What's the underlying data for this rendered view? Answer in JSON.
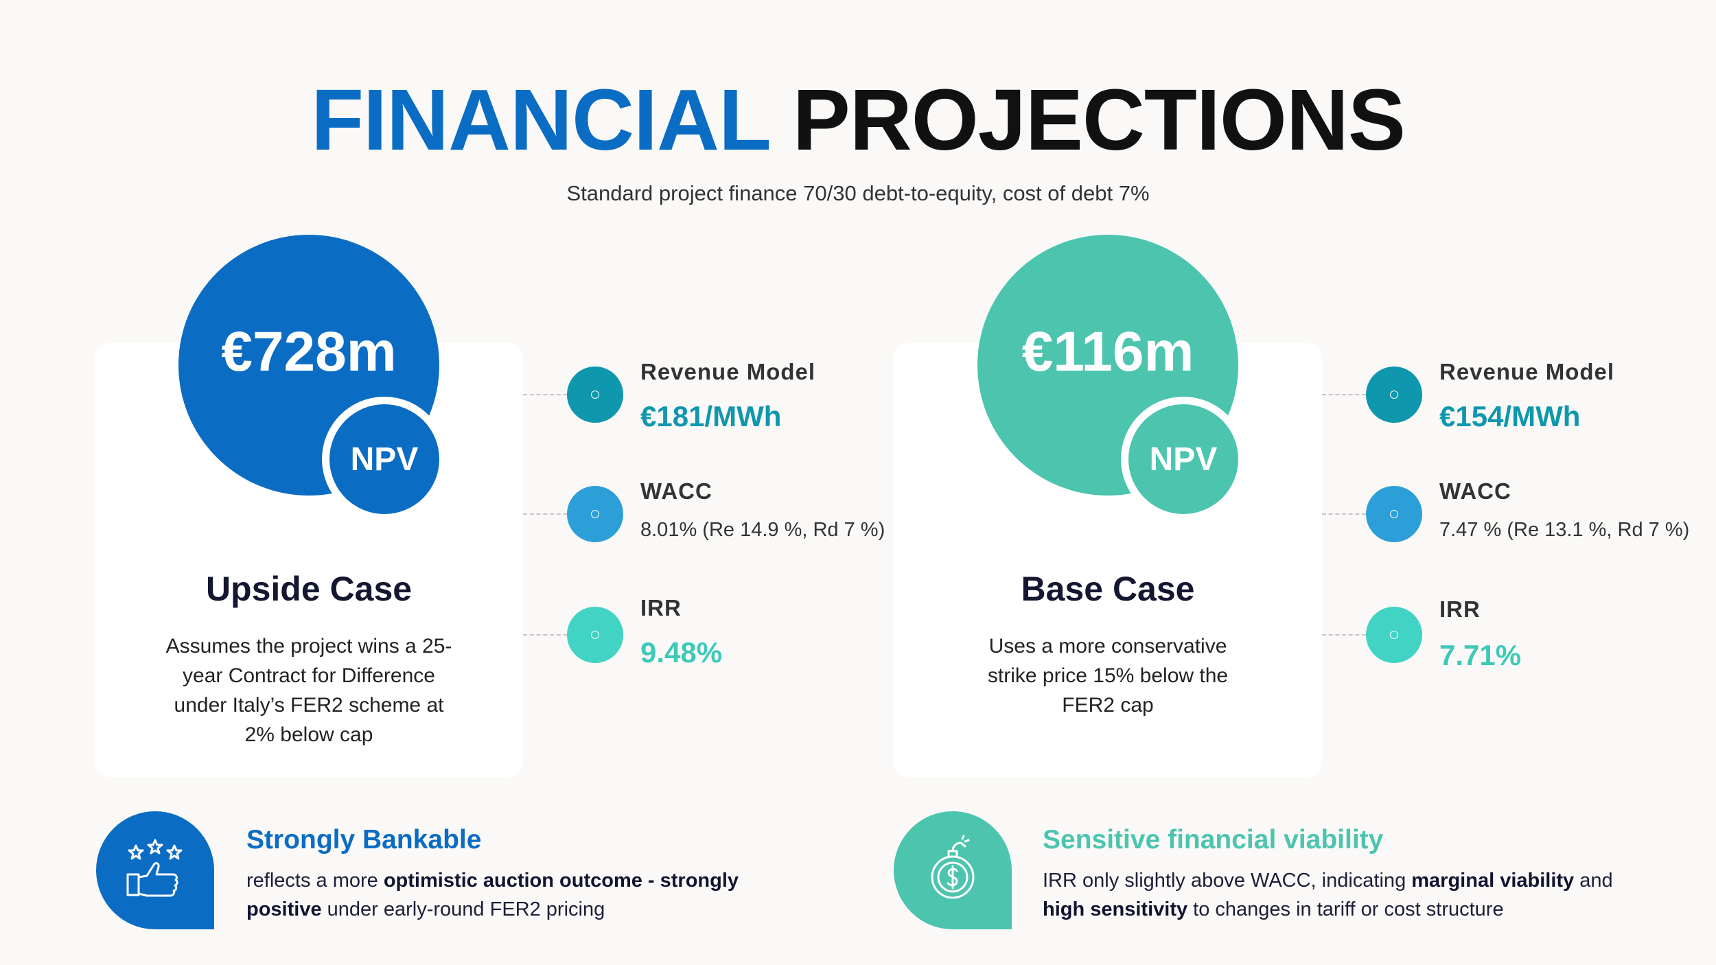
{
  "header": {
    "title_part1": "FINANCIAL",
    "title_part2": "PROJECTIONS",
    "subtitle": "Standard project finance 70/30 debt-to-equity, cost of debt 7%"
  },
  "colors": {
    "blue": "#0b6cc4",
    "teal": "#4cc4ae",
    "dark_teal": "#0f97ae",
    "mid_blue": "#2d9fd8",
    "aqua": "#41d3c4"
  },
  "upside": {
    "npv_value": "€728m",
    "npv_label": "NPV",
    "case_title": "Upside Case",
    "description": "Assumes the project wins a 25-year Contract for Difference under Italy’s FER2 scheme at 2% below cap",
    "revenue_label": "Revenue Model",
    "revenue_value": "€181/MWh",
    "wacc_label": "WACC",
    "wacc_value": "8.01% (Re 14.9 %, Rd 7 %)",
    "irr_label": "IRR",
    "irr_value": "9.48%"
  },
  "base": {
    "npv_value": "€116m",
    "npv_label": "NPV",
    "case_title": "Base Case",
    "description": "Uses a more conservative strike price 15% below the FER2 cap",
    "revenue_label": "Revenue Model",
    "revenue_value": "€154/MWh",
    "wacc_label": "WACC",
    "wacc_value": "7.47 % (Re 13.1 %, Rd 7 %)",
    "irr_label": "IRR",
    "irr_value": "7.71%"
  },
  "bankable": {
    "icon": "thumbs-up-stars-icon",
    "title": "Strongly Bankable",
    "text_1": "reflects a more ",
    "bold_1": "optimistic auction outcome - strongly positive",
    "text_2": " under early-round FER2 pricing"
  },
  "sensitive": {
    "icon": "money-bomb-icon",
    "title": "Sensitive financial viability",
    "text_1": "IRR only slightly above WACC, indicating ",
    "bold_1": "marginal viability",
    "text_2": " and ",
    "bold_2": "high sensitivity",
    "text_3": " to changes in tariff or cost structure"
  }
}
